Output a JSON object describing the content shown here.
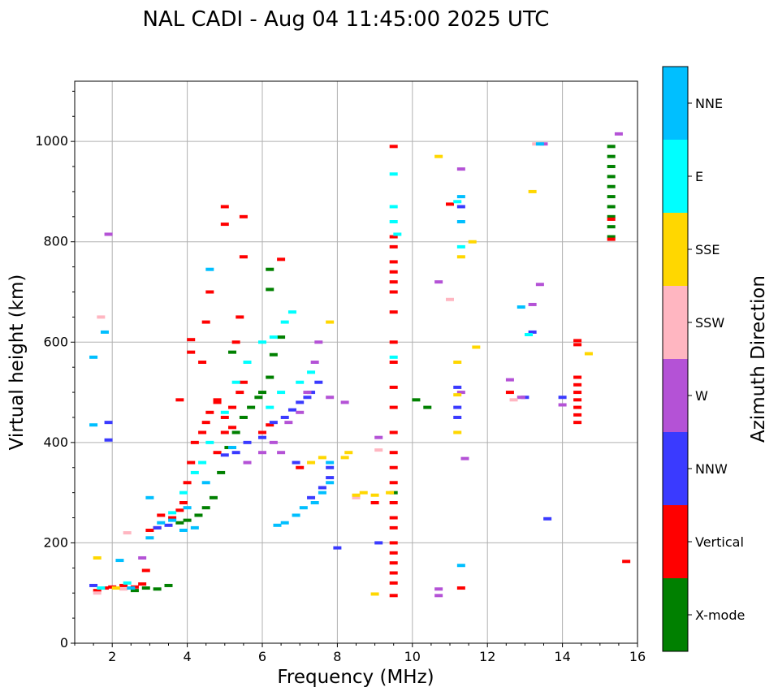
{
  "chart_data": {
    "type": "scatter",
    "title": "NAL CADI - Aug 04 11:45:00 2025 UTC",
    "xlabel": "Frequency (MHz)",
    "ylabel": "Virtual height (km)",
    "xlim": [
      1,
      16
    ],
    "ylim": [
      0,
      1120
    ],
    "xticks": [
      2,
      4,
      6,
      8,
      10,
      12,
      14,
      16
    ],
    "yticks": [
      0,
      200,
      400,
      600,
      800,
      1000
    ],
    "grid": true,
    "colorbar": {
      "label": "Azimuth Direction",
      "categories": [
        {
          "name": "X-mode",
          "color": "#008000"
        },
        {
          "name": "Vertical",
          "color": "#ff0000"
        },
        {
          "name": "NNW",
          "color": "#3a3aff"
        },
        {
          "name": "W",
          "color": "#b452d6"
        },
        {
          "name": "SSW",
          "color": "#ffb6c1"
        },
        {
          "name": "SSE",
          "color": "#ffd700"
        },
        {
          "name": "E",
          "color": "#00ffff"
        },
        {
          "name": "NNE",
          "color": "#00bfff"
        }
      ]
    },
    "series": [
      {
        "name": "X-mode",
        "points": [
          [
            2.6,
            105
          ],
          [
            2.9,
            110
          ],
          [
            3.2,
            108
          ],
          [
            3.5,
            115
          ],
          [
            3.8,
            240
          ],
          [
            4.0,
            245
          ],
          [
            4.3,
            255
          ],
          [
            4.5,
            270
          ],
          [
            4.7,
            290
          ],
          [
            4.9,
            340
          ],
          [
            5.1,
            390
          ],
          [
            5.3,
            420
          ],
          [
            5.5,
            450
          ],
          [
            5.7,
            470
          ],
          [
            5.9,
            490
          ],
          [
            6.0,
            500
          ],
          [
            6.2,
            530
          ],
          [
            6.3,
            575
          ],
          [
            6.5,
            610
          ],
          [
            5.2,
            580
          ],
          [
            6.2,
            705
          ],
          [
            6.2,
            745
          ],
          [
            9.5,
            300
          ],
          [
            10.1,
            485
          ],
          [
            10.4,
            470
          ],
          [
            15.3,
            810
          ],
          [
            15.3,
            830
          ],
          [
            15.3,
            850
          ],
          [
            15.3,
            870
          ],
          [
            15.3,
            890
          ],
          [
            15.3,
            910
          ],
          [
            15.3,
            930
          ],
          [
            15.3,
            950
          ],
          [
            15.3,
            970
          ],
          [
            15.3,
            990
          ]
        ]
      },
      {
        "name": "Vertical",
        "points": [
          [
            1.6,
            105
          ],
          [
            1.8,
            110
          ],
          [
            2.0,
            112
          ],
          [
            2.3,
            115
          ],
          [
            2.6,
            112
          ],
          [
            2.8,
            118
          ],
          [
            2.9,
            145
          ],
          [
            3.0,
            225
          ],
          [
            3.2,
            230
          ],
          [
            3.3,
            255
          ],
          [
            3.6,
            250
          ],
          [
            3.8,
            265
          ],
          [
            3.9,
            280
          ],
          [
            4.0,
            320
          ],
          [
            4.1,
            360
          ],
          [
            4.2,
            400
          ],
          [
            4.4,
            420
          ],
          [
            4.5,
            440
          ],
          [
            4.6,
            460
          ],
          [
            4.8,
            480
          ],
          [
            5.0,
            450
          ],
          [
            5.2,
            470
          ],
          [
            5.4,
            500
          ],
          [
            5.5,
            520
          ],
          [
            4.1,
            580
          ],
          [
            4.1,
            605
          ],
          [
            4.4,
            560
          ],
          [
            4.5,
            640
          ],
          [
            4.6,
            700
          ],
          [
            4.8,
            380
          ],
          [
            5.0,
            420
          ],
          [
            5.2,
            430
          ],
          [
            5.3,
            600
          ],
          [
            5.4,
            650
          ],
          [
            5.5,
            770
          ],
          [
            5.5,
            850
          ],
          [
            5.0,
            835
          ],
          [
            5.0,
            870
          ],
          [
            4.8,
            485
          ],
          [
            3.8,
            485
          ],
          [
            6.5,
            765
          ],
          [
            6.2,
            435
          ],
          [
            6.0,
            420
          ],
          [
            7.0,
            350
          ],
          [
            9.0,
            280
          ],
          [
            9.5,
            95
          ],
          [
            9.5,
            120
          ],
          [
            9.5,
            140
          ],
          [
            9.5,
            160
          ],
          [
            9.5,
            180
          ],
          [
            9.5,
            200
          ],
          [
            9.5,
            230
          ],
          [
            9.5,
            250
          ],
          [
            9.5,
            280
          ],
          [
            9.5,
            320
          ],
          [
            9.5,
            350
          ],
          [
            9.5,
            380
          ],
          [
            9.5,
            420
          ],
          [
            9.5,
            470
          ],
          [
            9.5,
            510
          ],
          [
            9.5,
            560
          ],
          [
            9.5,
            600
          ],
          [
            9.5,
            660
          ],
          [
            9.5,
            700
          ],
          [
            9.5,
            720
          ],
          [
            9.5,
            740
          ],
          [
            9.5,
            760
          ],
          [
            9.5,
            790
          ],
          [
            9.5,
            810
          ],
          [
            9.5,
            990
          ],
          [
            11.0,
            875
          ],
          [
            11.3,
            110
          ],
          [
            12.6,
            500
          ],
          [
            14.4,
            440
          ],
          [
            14.4,
            455
          ],
          [
            14.4,
            470
          ],
          [
            14.4,
            485
          ],
          [
            14.4,
            500
          ],
          [
            14.4,
            515
          ],
          [
            14.4,
            530
          ],
          [
            14.4,
            595
          ],
          [
            14.4,
            603
          ],
          [
            15.3,
            805
          ],
          [
            15.3,
            845
          ],
          [
            15.7,
            163
          ]
        ]
      },
      {
        "name": "NNW",
        "points": [
          [
            1.5,
            115
          ],
          [
            1.9,
            405
          ],
          [
            1.9,
            440
          ],
          [
            3.2,
            230
          ],
          [
            3.5,
            235
          ],
          [
            5.0,
            375
          ],
          [
            5.3,
            380
          ],
          [
            5.6,
            400
          ],
          [
            6.0,
            410
          ],
          [
            6.3,
            440
          ],
          [
            6.6,
            450
          ],
          [
            6.8,
            465
          ],
          [
            7.0,
            480
          ],
          [
            7.2,
            490
          ],
          [
            7.3,
            500
          ],
          [
            7.5,
            520
          ],
          [
            6.9,
            360
          ],
          [
            7.3,
            290
          ],
          [
            7.6,
            310
          ],
          [
            7.8,
            330
          ],
          [
            7.8,
            350
          ],
          [
            8.0,
            190
          ],
          [
            9.1,
            200
          ],
          [
            11.2,
            450
          ],
          [
            11.2,
            470
          ],
          [
            11.2,
            510
          ],
          [
            11.3,
            870
          ],
          [
            13.0,
            490
          ],
          [
            13.2,
            620
          ],
          [
            13.6,
            248
          ],
          [
            14.0,
            490
          ]
        ]
      },
      {
        "name": "W",
        "points": [
          [
            1.9,
            815
          ],
          [
            2.8,
            170
          ],
          [
            5.6,
            360
          ],
          [
            6.0,
            380
          ],
          [
            6.3,
            400
          ],
          [
            6.5,
            380
          ],
          [
            6.7,
            440
          ],
          [
            7.0,
            460
          ],
          [
            7.2,
            500
          ],
          [
            7.4,
            560
          ],
          [
            7.5,
            600
          ],
          [
            7.8,
            490
          ],
          [
            8.2,
            480
          ],
          [
            9.1,
            410
          ],
          [
            10.7,
            95
          ],
          [
            10.7,
            108
          ],
          [
            10.7,
            720
          ],
          [
            11.3,
            945
          ],
          [
            11.3,
            500
          ],
          [
            11.4,
            368
          ],
          [
            12.6,
            525
          ],
          [
            12.9,
            490
          ],
          [
            13.2,
            675
          ],
          [
            13.4,
            715
          ],
          [
            13.5,
            995
          ],
          [
            14.0,
            475
          ],
          [
            15.5,
            1015
          ]
        ]
      },
      {
        "name": "SSW",
        "points": [
          [
            1.6,
            100
          ],
          [
            2.3,
            108
          ],
          [
            2.4,
            220
          ],
          [
            9.1,
            385
          ],
          [
            11.0,
            685
          ],
          [
            12.7,
            485
          ],
          [
            8.5,
            290
          ],
          [
            1.7,
            650
          ],
          [
            13.3,
            995
          ]
        ]
      },
      {
        "name": "SSE",
        "points": [
          [
            1.6,
            170
          ],
          [
            2.1,
            110
          ],
          [
            7.3,
            360
          ],
          [
            7.6,
            370
          ],
          [
            7.8,
            640
          ],
          [
            8.2,
            370
          ],
          [
            8.3,
            380
          ],
          [
            8.5,
            295
          ],
          [
            8.7,
            300
          ],
          [
            9.0,
            295
          ],
          [
            9.0,
            98
          ],
          [
            10.7,
            970
          ],
          [
            11.2,
            420
          ],
          [
            11.2,
            495
          ],
          [
            11.2,
            560
          ],
          [
            11.3,
            770
          ],
          [
            11.6,
            800
          ],
          [
            11.7,
            590
          ],
          [
            13.2,
            900
          ],
          [
            14.7,
            577
          ],
          [
            9.4,
            300
          ]
        ]
      },
      {
        "name": "E",
        "points": [
          [
            1.7,
            110
          ],
          [
            2.4,
            120
          ],
          [
            3.6,
            260
          ],
          [
            3.9,
            300
          ],
          [
            4.2,
            340
          ],
          [
            4.4,
            360
          ],
          [
            4.6,
            400
          ],
          [
            5.0,
            460
          ],
          [
            5.3,
            520
          ],
          [
            5.6,
            560
          ],
          [
            6.0,
            600
          ],
          [
            6.3,
            610
          ],
          [
            6.6,
            640
          ],
          [
            6.8,
            660
          ],
          [
            6.2,
            470
          ],
          [
            6.5,
            500
          ],
          [
            7.0,
            520
          ],
          [
            7.3,
            540
          ],
          [
            9.5,
            570
          ],
          [
            9.5,
            840
          ],
          [
            9.5,
            870
          ],
          [
            9.5,
            935
          ],
          [
            9.6,
            815
          ],
          [
            11.3,
            790
          ],
          [
            11.2,
            880
          ],
          [
            13.1,
            615
          ]
        ]
      },
      {
        "name": "NNE",
        "points": [
          [
            1.5,
            570
          ],
          [
            1.5,
            435
          ],
          [
            1.8,
            620
          ],
          [
            2.2,
            165
          ],
          [
            2.5,
            110
          ],
          [
            3.0,
            210
          ],
          [
            3.0,
            290
          ],
          [
            3.3,
            240
          ],
          [
            3.6,
            245
          ],
          [
            3.9,
            225
          ],
          [
            4.2,
            230
          ],
          [
            4.0,
            270
          ],
          [
            4.5,
            320
          ],
          [
            4.6,
            745
          ],
          [
            5.2,
            390
          ],
          [
            6.4,
            235
          ],
          [
            6.6,
            240
          ],
          [
            6.9,
            255
          ],
          [
            7.1,
            270
          ],
          [
            7.4,
            280
          ],
          [
            7.6,
            300
          ],
          [
            7.8,
            360
          ],
          [
            7.8,
            320
          ],
          [
            11.3,
            155
          ],
          [
            11.3,
            840
          ],
          [
            11.3,
            890
          ],
          [
            12.9,
            670
          ],
          [
            13.4,
            995
          ]
        ]
      }
    ]
  }
}
